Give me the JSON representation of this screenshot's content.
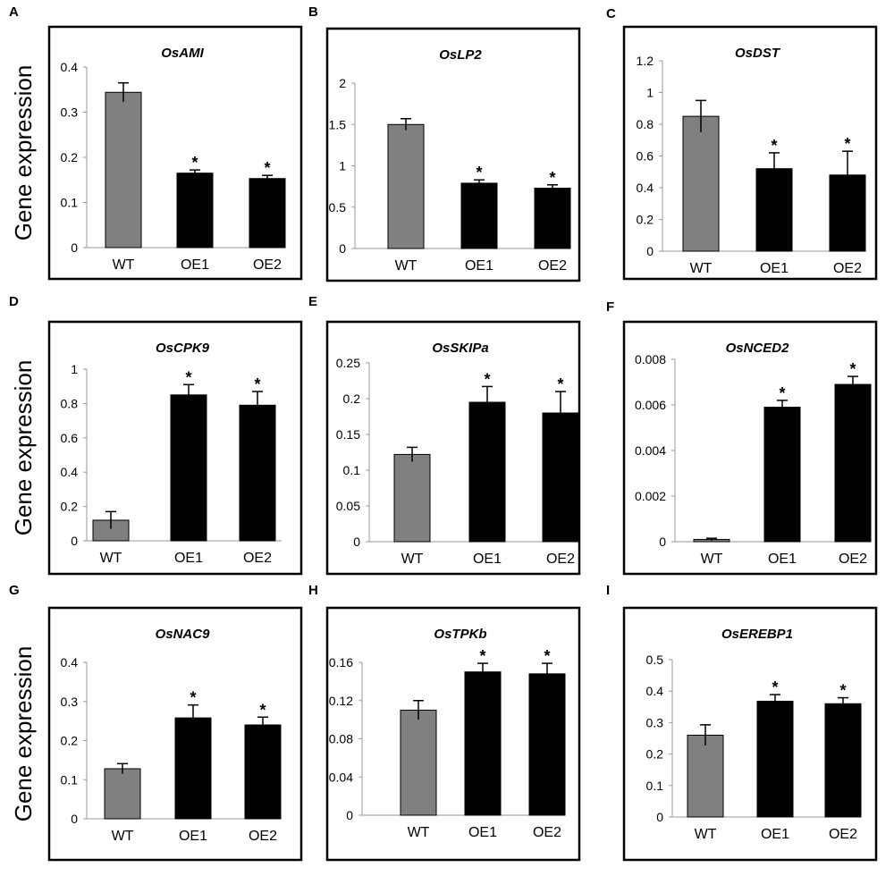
{
  "figure": {
    "ylabel": "Gene  expression"
  },
  "colors": {
    "wt_bar": "#808080",
    "oe_bar": "#000000",
    "frame": "#000000"
  },
  "chart_data": [
    {
      "type": "bar",
      "letter": "A",
      "title": "OsAMI",
      "categories": [
        "WT",
        "OE1",
        "OE2"
      ],
      "values": [
        0.344,
        0.165,
        0.153
      ],
      "errors": [
        0.021,
        0.007,
        0.007
      ],
      "significant": [
        false,
        true,
        true
      ],
      "ylim": [
        0,
        0.4
      ],
      "ticks": [
        0,
        0.1,
        0.2,
        0.3,
        0.4
      ],
      "tick_labels": [
        "0",
        "0.1",
        "0.2",
        "0.3",
        "0.4"
      ],
      "significance_mark": "*",
      "xlabel": "",
      "ylabel": "Gene  expression"
    },
    {
      "type": "bar",
      "letter": "B",
      "title": "OsLP2",
      "categories": [
        "WT",
        "OE1",
        "OE2"
      ],
      "values": [
        1.5,
        0.79,
        0.73
      ],
      "errors": [
        0.07,
        0.04,
        0.04
      ],
      "significant": [
        false,
        true,
        true
      ],
      "ylim": [
        0,
        2
      ],
      "ticks": [
        0,
        0.5,
        1,
        1.5,
        2
      ],
      "tick_labels": [
        "0",
        "0.5",
        "1",
        "1.5",
        "2"
      ],
      "significance_mark": "*",
      "xlabel": "",
      "ylabel": ""
    },
    {
      "type": "bar",
      "letter": "C",
      "title": "OsDST",
      "categories": [
        "WT",
        "OE1",
        "OE2"
      ],
      "values": [
        0.85,
        0.52,
        0.48
      ],
      "errors": [
        0.1,
        0.1,
        0.15
      ],
      "significant": [
        false,
        true,
        true
      ],
      "ylim": [
        0,
        1.2
      ],
      "ticks": [
        0,
        0.2,
        0.4,
        0.6,
        0.8,
        1,
        1.2
      ],
      "tick_labels": [
        "0",
        "0.2",
        "0.4",
        "0.6",
        "0.8",
        "1",
        "1.2"
      ],
      "significance_mark": "*",
      "xlabel": "",
      "ylabel": ""
    },
    {
      "type": "bar",
      "letter": "D",
      "title": "OsCPK9",
      "categories": [
        "WT",
        "OE1",
        "OE2"
      ],
      "values": [
        0.12,
        0.85,
        0.79
      ],
      "errors": [
        0.05,
        0.06,
        0.08
      ],
      "significant": [
        false,
        true,
        true
      ],
      "ylim": [
        0,
        1
      ],
      "ticks": [
        0,
        0.2,
        0.4,
        0.6,
        0.8,
        1
      ],
      "tick_labels": [
        "0",
        "0.2",
        "0.4",
        "0.6",
        "0.8",
        "1"
      ],
      "significance_mark": "*",
      "xlabel": "",
      "ylabel": "Gene  expression"
    },
    {
      "type": "bar",
      "letter": "E",
      "title": "OsSKIPa",
      "categories": [
        "WT",
        "OE1",
        "OE2"
      ],
      "values": [
        0.122,
        0.195,
        0.18
      ],
      "errors": [
        0.01,
        0.022,
        0.03
      ],
      "significant": [
        false,
        true,
        true
      ],
      "ylim": [
        0,
        0.25
      ],
      "ticks": [
        0,
        0.05,
        0.1,
        0.15,
        0.2,
        0.25
      ],
      "tick_labels": [
        "0",
        "0.05",
        "0.1",
        "0.15",
        "0.2",
        "0.25"
      ],
      "significance_mark": "*",
      "xlabel": "",
      "ylabel": ""
    },
    {
      "type": "bar",
      "letter": "F",
      "title": "OsNCED2",
      "categories": [
        "WT",
        "OE1",
        "OE2"
      ],
      "values": [
        0.0001,
        0.0059,
        0.0069
      ],
      "errors": [
        5e-05,
        0.0003,
        0.00035
      ],
      "significant": [
        false,
        true,
        true
      ],
      "ylim": [
        0,
        0.008
      ],
      "ticks": [
        0,
        0.002,
        0.004,
        0.006,
        0.008
      ],
      "tick_labels": [
        "0",
        "0.002",
        "0.004",
        "0.006",
        "0.008"
      ],
      "significance_mark": "*",
      "xlabel": "",
      "ylabel": ""
    },
    {
      "type": "bar",
      "letter": "G",
      "title": "OsNAC9",
      "categories": [
        "WT",
        "OE1",
        "OE2"
      ],
      "values": [
        0.128,
        0.258,
        0.24
      ],
      "errors": [
        0.013,
        0.033,
        0.02
      ],
      "significant": [
        false,
        true,
        true
      ],
      "ylim": [
        0,
        0.4
      ],
      "ticks": [
        0,
        0.1,
        0.2,
        0.3,
        0.4
      ],
      "tick_labels": [
        "0",
        "0.1",
        "0.2",
        "0.3",
        "0.4"
      ],
      "significance_mark": "*",
      "xlabel": "",
      "ylabel": "Gene  expression"
    },
    {
      "type": "bar",
      "letter": "H",
      "title": "OsTPKb",
      "categories": [
        "WT",
        "OE1",
        "OE2"
      ],
      "values": [
        0.11,
        0.15,
        0.148
      ],
      "errors": [
        0.01,
        0.009,
        0.011
      ],
      "significant": [
        false,
        true,
        true
      ],
      "ylim": [
        0,
        0.16
      ],
      "ticks": [
        0,
        0.04,
        0.08,
        0.12,
        0.16
      ],
      "tick_labels": [
        "0",
        "0.04",
        "0.08",
        "0.12",
        "0.16"
      ],
      "significance_mark": "*",
      "xlabel": "",
      "ylabel": ""
    },
    {
      "type": "bar",
      "letter": "I",
      "title": "OsEREBP1",
      "categories": [
        "WT",
        "OE1",
        "OE2"
      ],
      "values": [
        0.26,
        0.368,
        0.36
      ],
      "errors": [
        0.033,
        0.021,
        0.019
      ],
      "significant": [
        false,
        true,
        true
      ],
      "ylim": [
        0,
        0.5
      ],
      "ticks": [
        0,
        0.1,
        0.2,
        0.3,
        0.4,
        0.5
      ],
      "tick_labels": [
        "0",
        "0.1",
        "0.2",
        "0.3",
        "0.4",
        "0.5"
      ],
      "significance_mark": "*",
      "xlabel": "",
      "ylabel": ""
    }
  ]
}
